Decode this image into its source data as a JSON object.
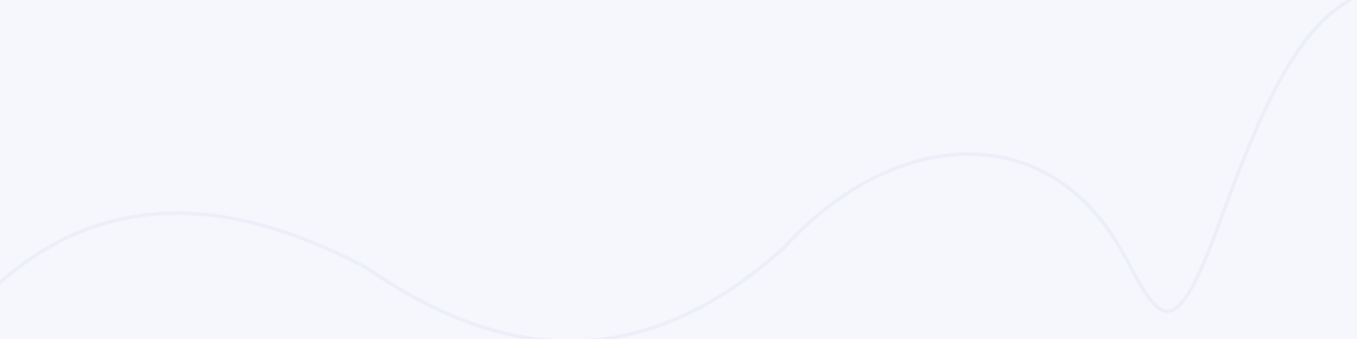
{
  "background": {
    "base_color": "#f5f7fc",
    "wave_color": "#eceff8"
  }
}
